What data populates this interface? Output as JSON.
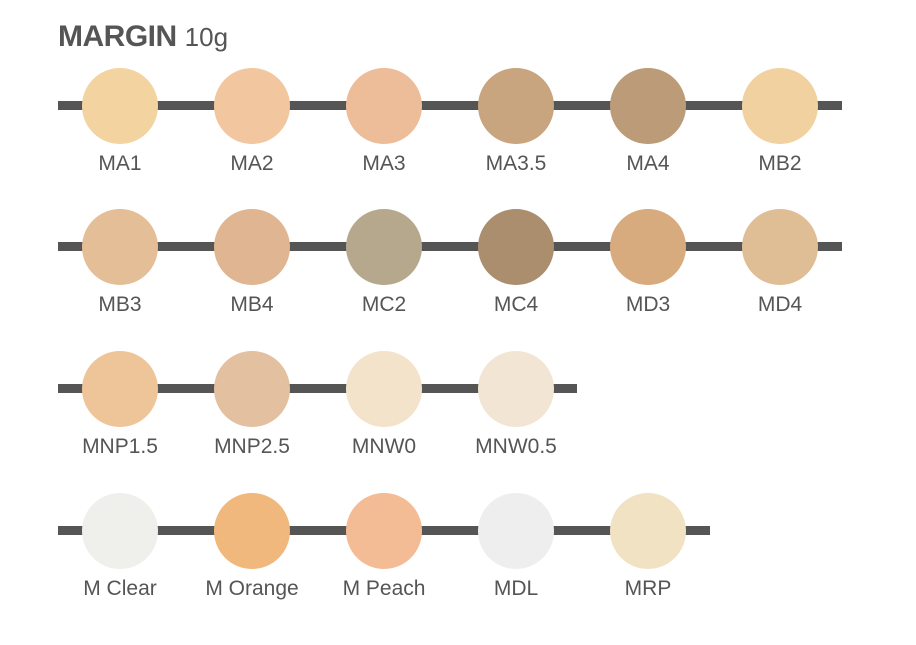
{
  "header": {
    "title": "MARGIN",
    "subtitle": "10g"
  },
  "rows": [
    {
      "swatches": [
        {
          "label": "MA1",
          "color": "#F3D4A1"
        },
        {
          "label": "MA2",
          "color": "#F2C7A0"
        },
        {
          "label": "MA3",
          "color": "#EDBD99"
        },
        {
          "label": "MA3.5",
          "color": "#C8A47F"
        },
        {
          "label": "MA4",
          "color": "#BB9B78"
        },
        {
          "label": "MB2",
          "color": "#F1D1A0"
        }
      ]
    },
    {
      "swatches": [
        {
          "label": "MB3",
          "color": "#E4BE96"
        },
        {
          "label": "MB4",
          "color": "#DFB691"
        },
        {
          "label": "MC2",
          "color": "#B6A88D"
        },
        {
          "label": "MC4",
          "color": "#AA8E6E"
        },
        {
          "label": "MD3",
          "color": "#D8AB7E"
        },
        {
          "label": "MD4",
          "color": "#DFBD95"
        }
      ]
    },
    {
      "swatches": [
        {
          "label": "MNP1.5",
          "color": "#EEC598"
        },
        {
          "label": "MNP2.5",
          "color": "#E3C09F"
        },
        {
          "label": "MNW0",
          "color": "#F4E3CB"
        },
        {
          "label": "MNW0.5",
          "color": "#F2E5D3"
        }
      ]
    },
    {
      "swatches": [
        {
          "label": "M Clear",
          "color": "#EFEFEC"
        },
        {
          "label": "M Orange",
          "color": "#F1B87E"
        },
        {
          "label": "M Peach",
          "color": "#F4BC95"
        },
        {
          "label": "MDL",
          "color": "#EEEEEE"
        },
        {
          "label": "MRP",
          "color": "#F1E2C4"
        }
      ]
    }
  ]
}
